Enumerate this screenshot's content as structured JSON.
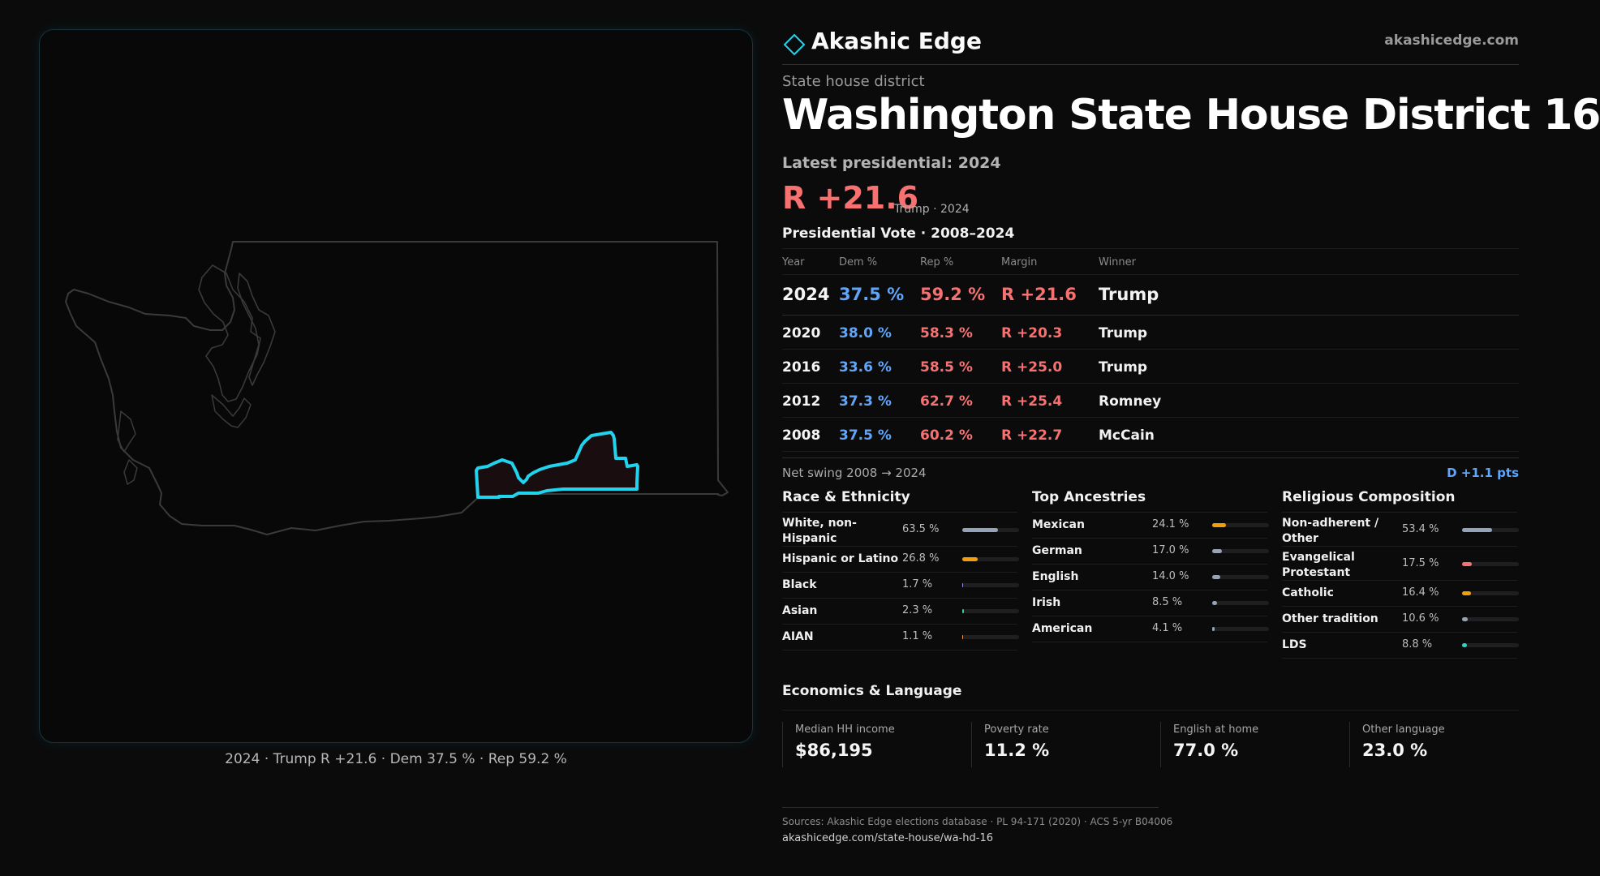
{
  "brand": {
    "name": "Akashic Edge",
    "url": "akashicedge.com",
    "accent": "#22d3ee"
  },
  "district": {
    "type": "State house district",
    "title": "Washington State House District 16",
    "latest_label": "Latest presidential: 2024",
    "margin": "R +21.6",
    "margin_note": "Trump · 2024"
  },
  "map": {
    "caption": "2024 · Trump R +21.6 · Dem 37.5 % · Rep 59.2 %",
    "highlight_color": "#22d3ee",
    "outline_color": "#3a3a3d"
  },
  "presidential": {
    "title": "Presidential Vote · 2008–2024",
    "headers": {
      "year": "Year",
      "dem": "Dem %",
      "rep": "Rep %",
      "margin": "Margin",
      "winner": "Winner"
    },
    "rows": [
      {
        "year": "2024",
        "dem": "37.5 %",
        "rep": "59.2 %",
        "margin": "R +21.6",
        "winner": "Trump"
      },
      {
        "year": "2020",
        "dem": "38.0 %",
        "rep": "58.3 %",
        "margin": "R +20.3",
        "winner": "Trump"
      },
      {
        "year": "2016",
        "dem": "33.6 %",
        "rep": "58.5 %",
        "margin": "R +25.0",
        "winner": "Trump"
      },
      {
        "year": "2012",
        "dem": "37.3 %",
        "rep": "62.7 %",
        "margin": "R +25.4",
        "winner": "Romney"
      },
      {
        "year": "2008",
        "dem": "37.5 %",
        "rep": "60.2 %",
        "margin": "R +22.7",
        "winner": "McCain"
      }
    ],
    "swing_label": "Net swing 2008 → 2024",
    "swing_value": "D +1.1 pts",
    "dem_color": "#60a5fa",
    "rep_color": "#f87171"
  },
  "race": {
    "title": "Race & Ethnicity",
    "items": [
      {
        "label": "White, non-Hispanic",
        "value": "63.5 %",
        "pct": 63.5,
        "color": "#94a3b8"
      },
      {
        "label": "Hispanic or Latino",
        "value": "26.8 %",
        "pct": 26.8,
        "color": "#f59e0b"
      },
      {
        "label": "Black",
        "value": "1.7 %",
        "pct": 1.7,
        "color": "#a78bfa"
      },
      {
        "label": "Asian",
        "value": "2.3 %",
        "pct": 2.3,
        "color": "#34d399"
      },
      {
        "label": "AIAN",
        "value": "1.1 %",
        "pct": 1.1,
        "color": "#fb923c"
      }
    ]
  },
  "ancestry": {
    "title": "Top Ancestries",
    "items": [
      {
        "label": "Mexican",
        "value": "24.1 %",
        "pct": 24.1,
        "color": "#f59e0b"
      },
      {
        "label": "German",
        "value": "17.0 %",
        "pct": 17.0,
        "color": "#94a3b8"
      },
      {
        "label": "English",
        "value": "14.0 %",
        "pct": 14.0,
        "color": "#94a3b8"
      },
      {
        "label": "Irish",
        "value": "8.5 %",
        "pct": 8.5,
        "color": "#94a3b8"
      },
      {
        "label": "American",
        "value": "4.1 %",
        "pct": 4.1,
        "color": "#94a3b8"
      }
    ]
  },
  "religion": {
    "title": "Religious Composition",
    "items": [
      {
        "label": "Non-adherent / Other",
        "value": "53.4 %",
        "pct": 53.4,
        "color": "#94a3b8"
      },
      {
        "label": "Evangelical Protestant",
        "value": "17.5 %",
        "pct": 17.5,
        "color": "#f87171"
      },
      {
        "label": "Catholic",
        "value": "16.4 %",
        "pct": 16.4,
        "color": "#f59e0b"
      },
      {
        "label": "Other tradition",
        "value": "10.6 %",
        "pct": 10.6,
        "color": "#94a3b8"
      },
      {
        "label": "LDS",
        "value": "8.8 %",
        "pct": 8.8,
        "color": "#2dd4bf"
      }
    ]
  },
  "economics": {
    "title": "Economics & Language",
    "cards": [
      {
        "label": "Median HH income",
        "value": "$86,195"
      },
      {
        "label": "Poverty rate",
        "value": "11.2 %"
      },
      {
        "label": "English at home",
        "value": "77.0 %"
      },
      {
        "label": "Other language",
        "value": "23.0 %"
      }
    ]
  },
  "sources": {
    "text": "Sources: Akashic Edge elections database · PL 94-171 (2020) · ACS 5-yr B04006",
    "url": "akashicedge.com/state-house/wa-hd-16"
  }
}
